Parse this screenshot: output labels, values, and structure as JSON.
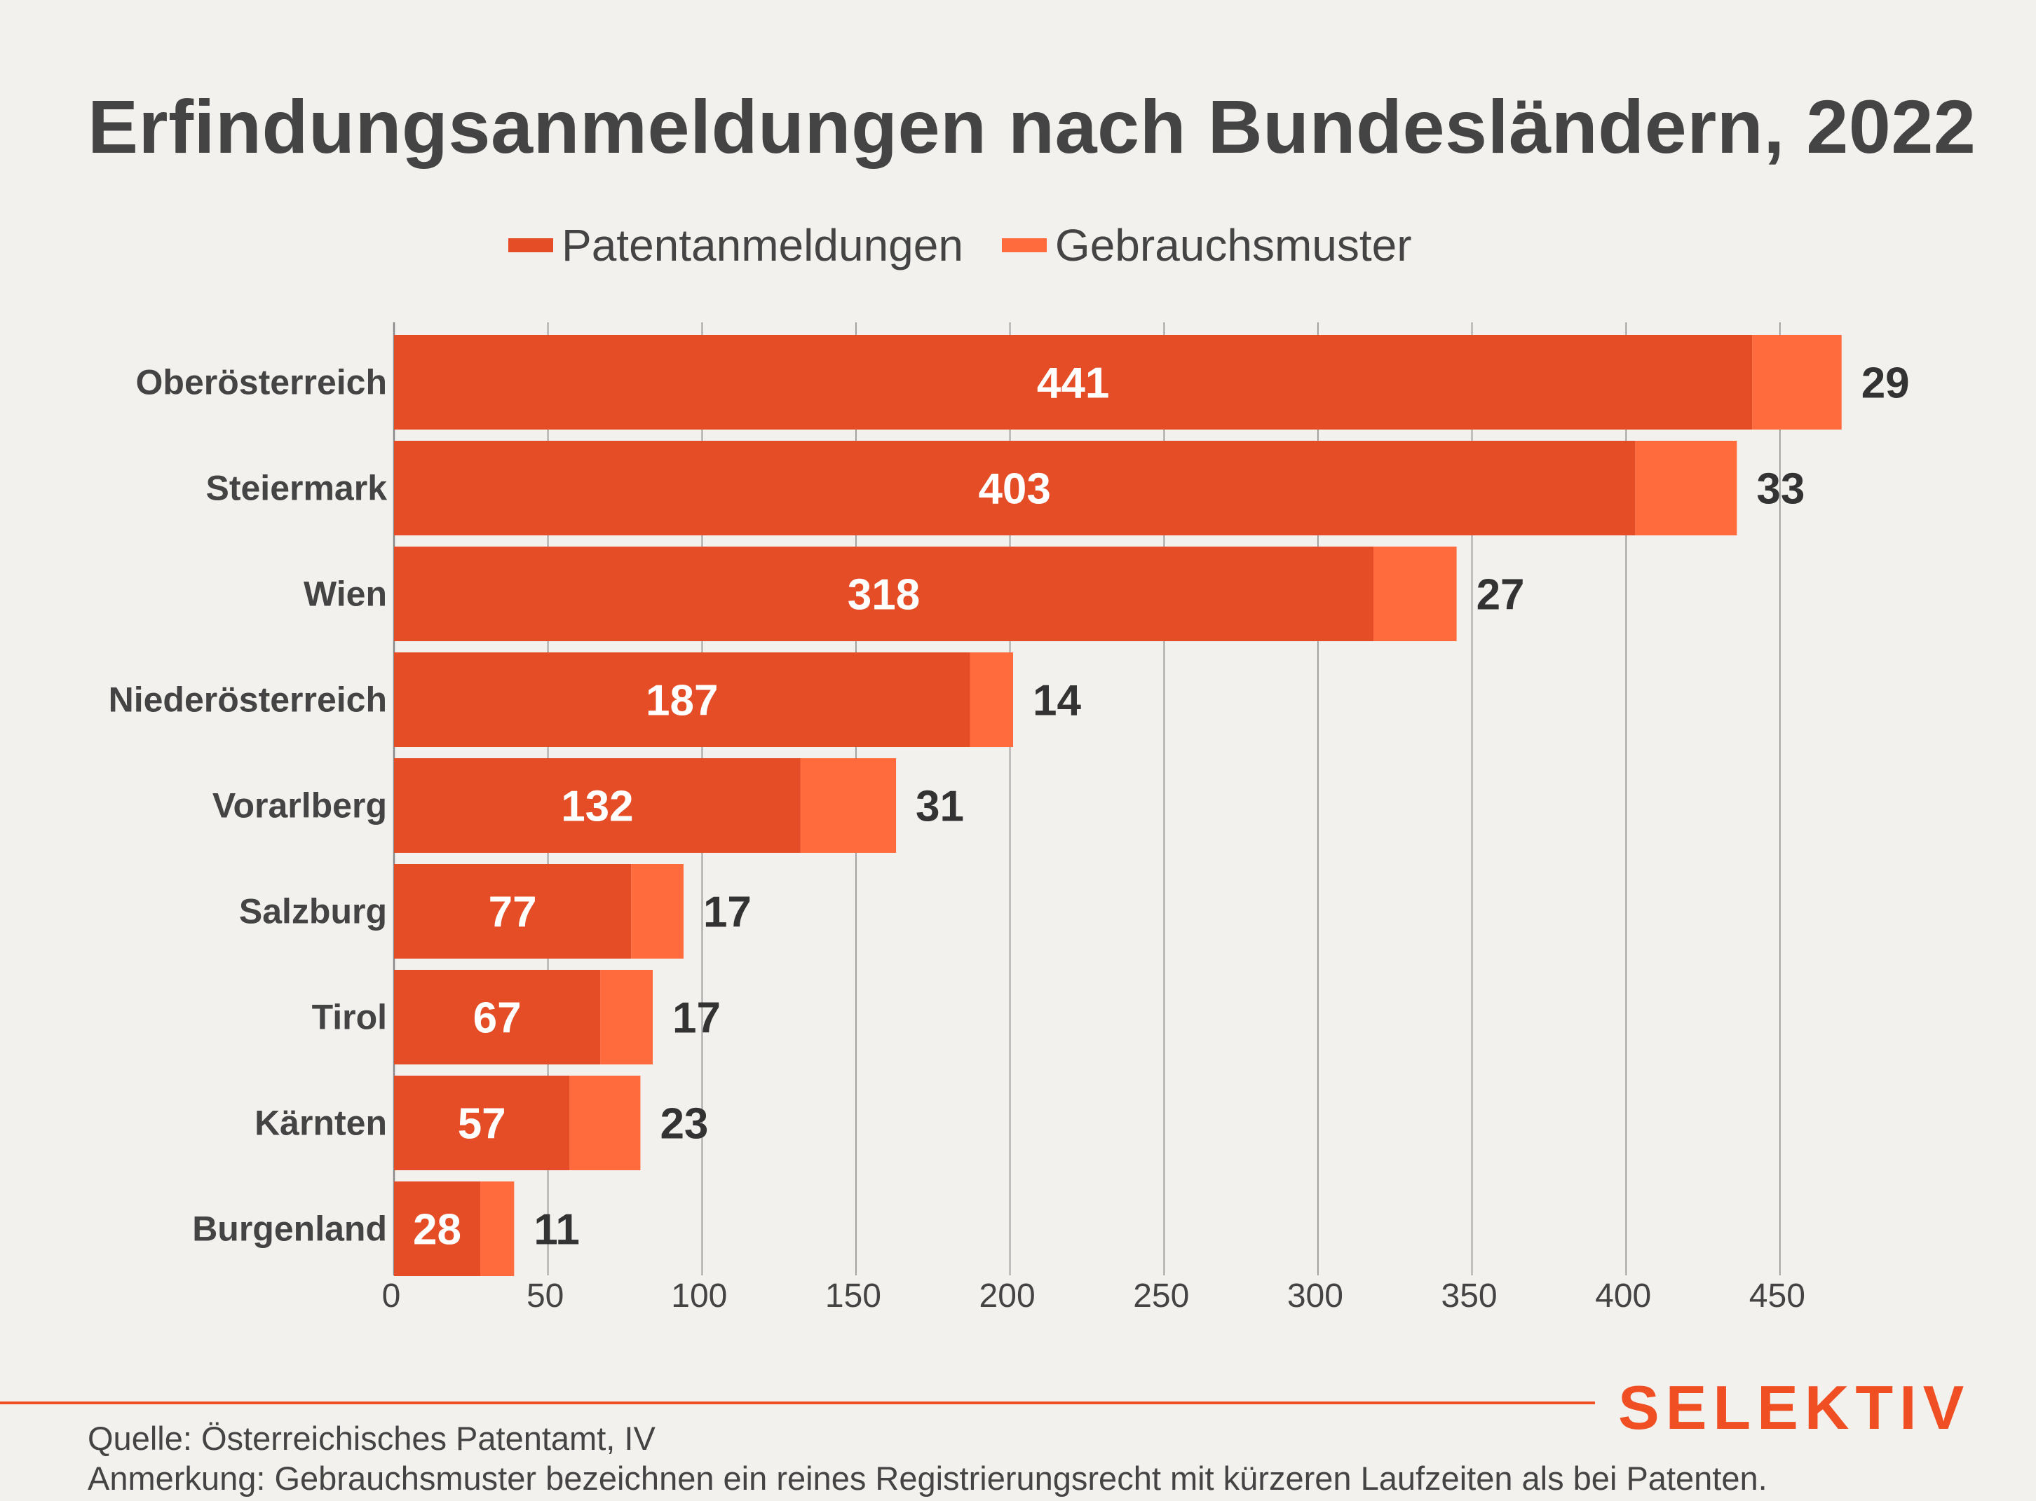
{
  "colors": {
    "background": "#f3f1ed",
    "text": "#444444",
    "patent": "#e44d26",
    "utility": "#ff6b3d",
    "bar_label": "#ffffff",
    "outside_label": "#333333",
    "grid": "#888888",
    "brand": "#f04e23"
  },
  "title": "Erfindungsanmeldungen nach Bundesländern, 2022",
  "brand": "SELEKTIV",
  "footer": {
    "source": "Quelle: Österreichisches Patentamt, IV",
    "note": "Anmerkung: Gebrauchsmuster bezeichnen ein reines Registrierungsrecht mit kürzeren Laufzeiten als bei Patenten."
  },
  "chart_data": {
    "type": "bar",
    "orientation": "horizontal",
    "stacked": true,
    "title": "Erfindungsanmeldungen nach Bundesländern, 2022",
    "categories": [
      "Oberösterreich",
      "Steiermark",
      "Wien",
      "Niederösterreich",
      "Vorarlberg",
      "Salzburg",
      "Tirol",
      "Kärnten",
      "Burgenland"
    ],
    "series": [
      {
        "name": "Patentanmeldungen",
        "color": "#e44d26",
        "values": [
          441,
          403,
          318,
          187,
          132,
          77,
          67,
          57,
          28
        ]
      },
      {
        "name": "Gebrauchsmuster",
        "color": "#ff6b3d",
        "values": [
          29,
          33,
          27,
          14,
          31,
          17,
          17,
          23,
          11
        ]
      }
    ],
    "xticks": [
      0,
      50,
      100,
      150,
      200,
      250,
      300,
      350,
      400,
      450
    ],
    "xlim": [
      0,
      470
    ],
    "grid": true,
    "legend": "top-center",
    "xlabel": "",
    "ylabel": ""
  }
}
